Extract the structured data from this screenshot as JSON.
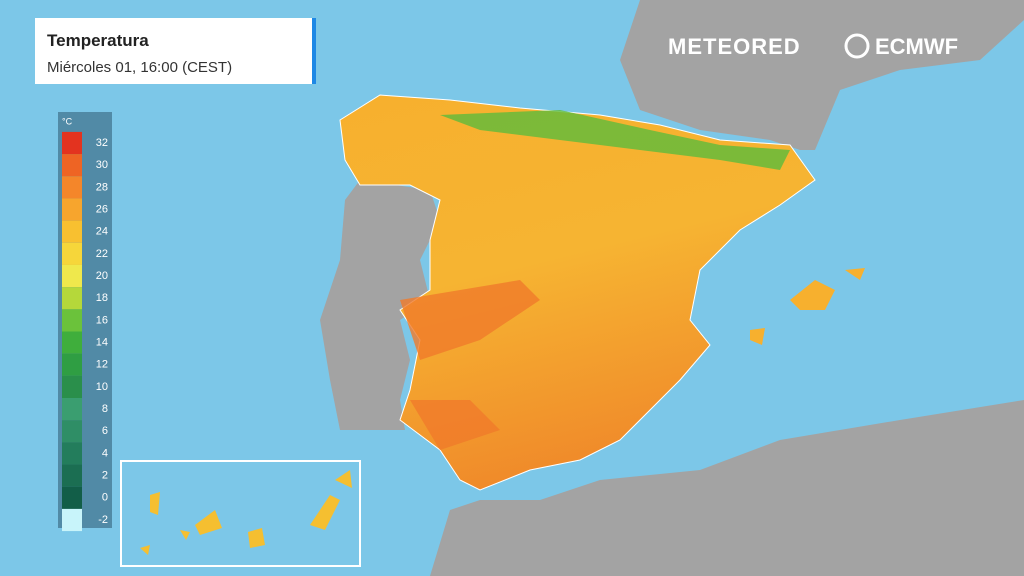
{
  "header": {
    "title": "Temperatura",
    "subtitle": "Miércoles 01, 16:00 (CEST)"
  },
  "legend": {
    "unit": "°C",
    "ticks": [
      32,
      30,
      28,
      26,
      24,
      22,
      20,
      18,
      16,
      14,
      12,
      10,
      8,
      6,
      4,
      2,
      0,
      -2
    ],
    "colors": [
      "#e3331f",
      "#ee6424",
      "#f4862a",
      "#f7a52d",
      "#f8c030",
      "#f6d63a",
      "#efe84c",
      "#b5d83a",
      "#6bc23b",
      "#3fae3c",
      "#2f9e43",
      "#2a8f4b",
      "#3a9e70",
      "#2f8e66",
      "#237d5c",
      "#1b6e52",
      "#125e48",
      "#c8f4fa"
    ]
  },
  "logos": {
    "brand": "METEORED",
    "partner": "ECMWF"
  }
}
